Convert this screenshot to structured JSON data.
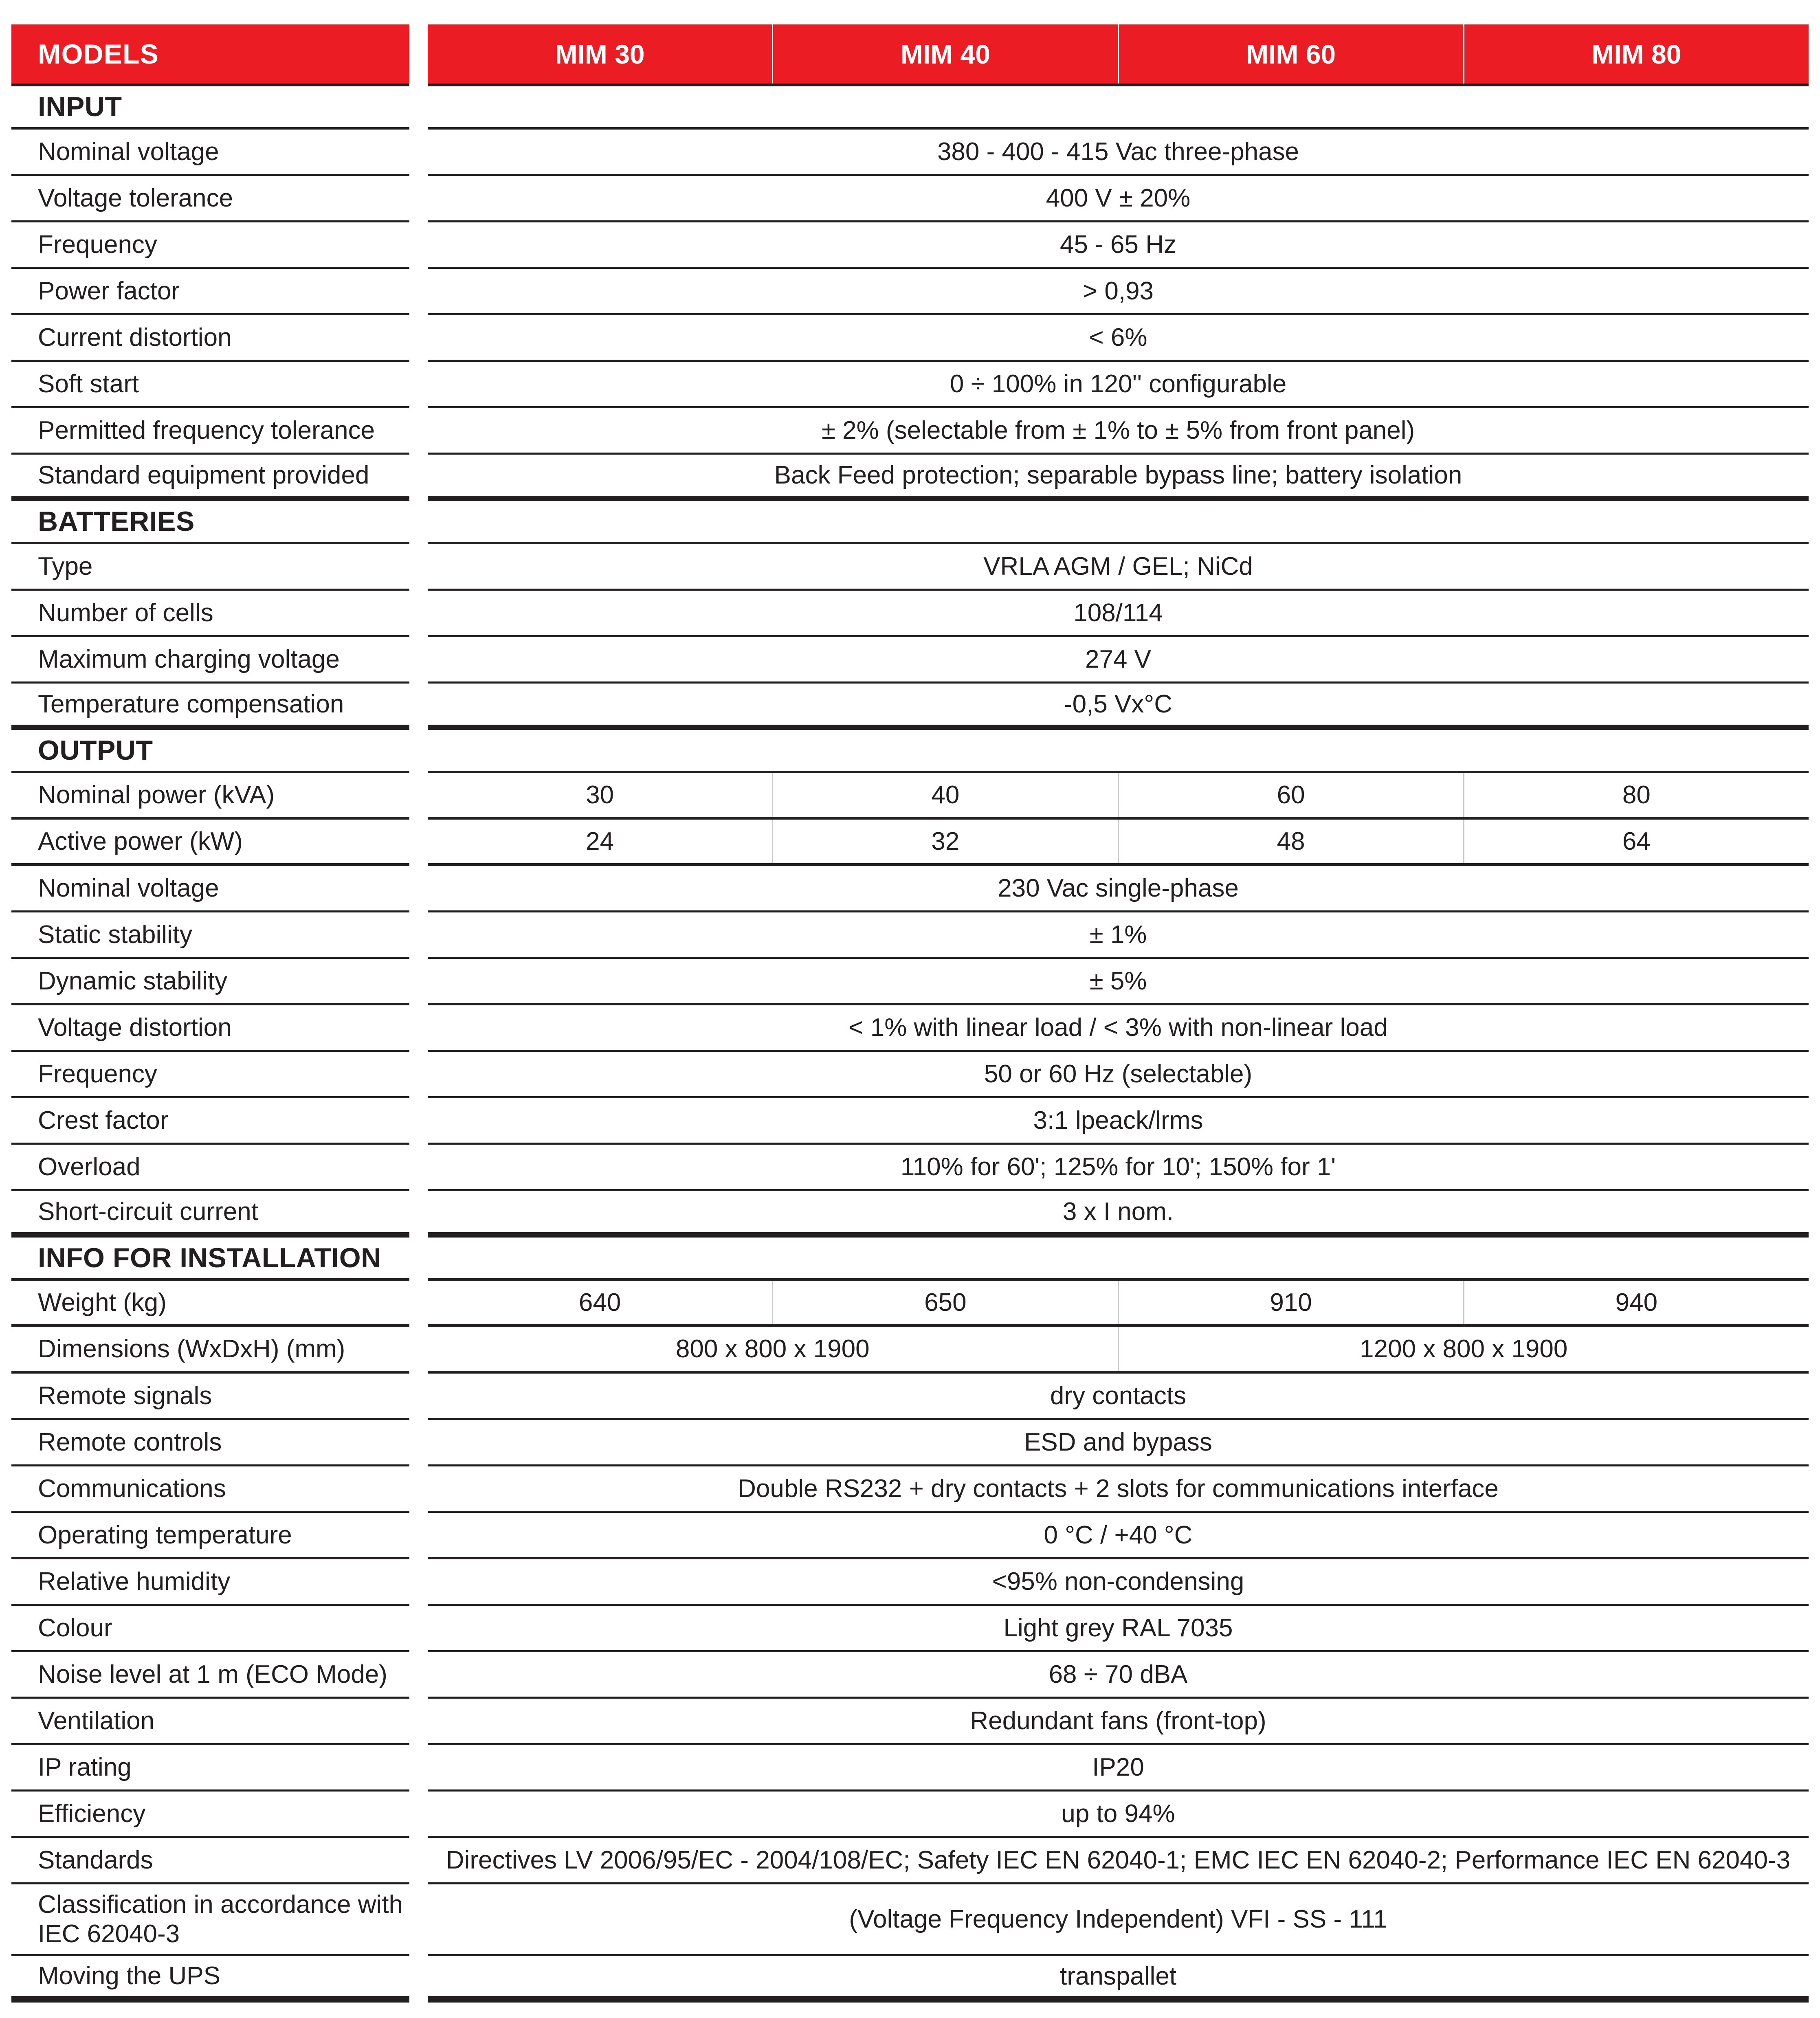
{
  "colors": {
    "accent_red": "#ec1c24",
    "text_dark": "#231f20",
    "divider_gray": "#c9c9c9"
  },
  "header": {
    "models_label": "MODELS",
    "model_columns": [
      "MIM 30",
      "MIM 40",
      "MIM 60",
      "MIM 80"
    ]
  },
  "sections": [
    {
      "title": "INPUT",
      "rows": [
        {
          "label": "Nominal voltage",
          "value": "380 - 400 - 415 Vac three-phase"
        },
        {
          "label": "Voltage tolerance",
          "value": "400 V ± 20%"
        },
        {
          "label": "Frequency",
          "value": "45  - 65 Hz"
        },
        {
          "label": "Power factor",
          "value": "> 0,93"
        },
        {
          "label": "Current distortion",
          "value": "< 6%"
        },
        {
          "label": "Soft start",
          "value": "0 ÷ 100% in 120'' configurable"
        },
        {
          "label": "Permitted frequency tolerance",
          "value": "± 2% (selectable from ± 1% to ± 5% from front panel)"
        },
        {
          "label": "Standard equipment provided",
          "value": "Back Feed protection; separable bypass line; battery isolation"
        }
      ]
    },
    {
      "title": "BATTERIES",
      "rows": [
        {
          "label": "Type",
          "value": "VRLA AGM / GEL; NiCd"
        },
        {
          "label": "Number of cells",
          "value": "108/114"
        },
        {
          "label": "Maximum charging voltage",
          "value": "274 V"
        },
        {
          "label": "Temperature compensation",
          "value": "-0,5 Vx°C"
        }
      ]
    },
    {
      "title": "OUTPUT",
      "rows": [
        {
          "label": "Nominal power (kVA)",
          "values": [
            "30",
            "40",
            "60",
            "80"
          ]
        },
        {
          "label": "Active power (kW)",
          "values": [
            "24",
            "32",
            "48",
            "64"
          ]
        },
        {
          "label": "Nominal voltage",
          "value": "230 Vac single-phase"
        },
        {
          "label": "Static stability",
          "value": "± 1%"
        },
        {
          "label": "Dynamic stability",
          "value": "± 5%"
        },
        {
          "label": "Voltage distortion",
          "value": "< 1% with linear load / < 3% with non-linear load"
        },
        {
          "label": "Frequency",
          "value": "50 or 60 Hz (selectable)"
        },
        {
          "label": "Crest factor",
          "value": "3:1 lpeack/lrms"
        },
        {
          "label": "Overload",
          "value": "110% for 60'; 125% for 10'; 150% for 1'"
        },
        {
          "label": "Short-circuit current",
          "value": "3 x I nom."
        }
      ]
    },
    {
      "title": "INFO FOR INSTALLATION",
      "rows": [
        {
          "label": "Weight (kg)",
          "values": [
            "640",
            "650",
            "910",
            "940"
          ]
        },
        {
          "label": "Dimensions (WxDxH) (mm)",
          "values_half": [
            "800 x 800 x 1900",
            "1200 x 800 x 1900"
          ]
        },
        {
          "label": "Remote signals",
          "value": "dry contacts"
        },
        {
          "label": "Remote controls",
          "value": "ESD and bypass"
        },
        {
          "label": "Communications",
          "value": "Double RS232 + dry contacts + 2 slots for communications interface"
        },
        {
          "label": "Operating temperature",
          "value": "0 °C / +40 °C"
        },
        {
          "label": "Relative humidity",
          "value": "<95% non-condensing"
        },
        {
          "label": "Colour",
          "value": "Light grey RAL 7035"
        },
        {
          "label": "Noise level at 1 m (ECO Mode)",
          "value": "68 ÷ 70 dBA"
        },
        {
          "label": "Ventilation",
          "value": "Redundant fans (front-top)"
        },
        {
          "label": "IP rating",
          "value": "IP20"
        },
        {
          "label": "Efficiency",
          "value": "up to 94%"
        },
        {
          "label": "Standards",
          "value": "Directives LV 2006/95/EC - 2004/108/EC; Safety IEC EN 62040-1; EMC IEC EN 62040-2; Performance IEC EN 62040-3"
        },
        {
          "label": "Classification in accordance with IEC 62040-3",
          "value": "(Voltage Frequency Independent) VFI - SS - 111"
        },
        {
          "label": "Moving the UPS",
          "value": "transpallet"
        }
      ]
    }
  ]
}
